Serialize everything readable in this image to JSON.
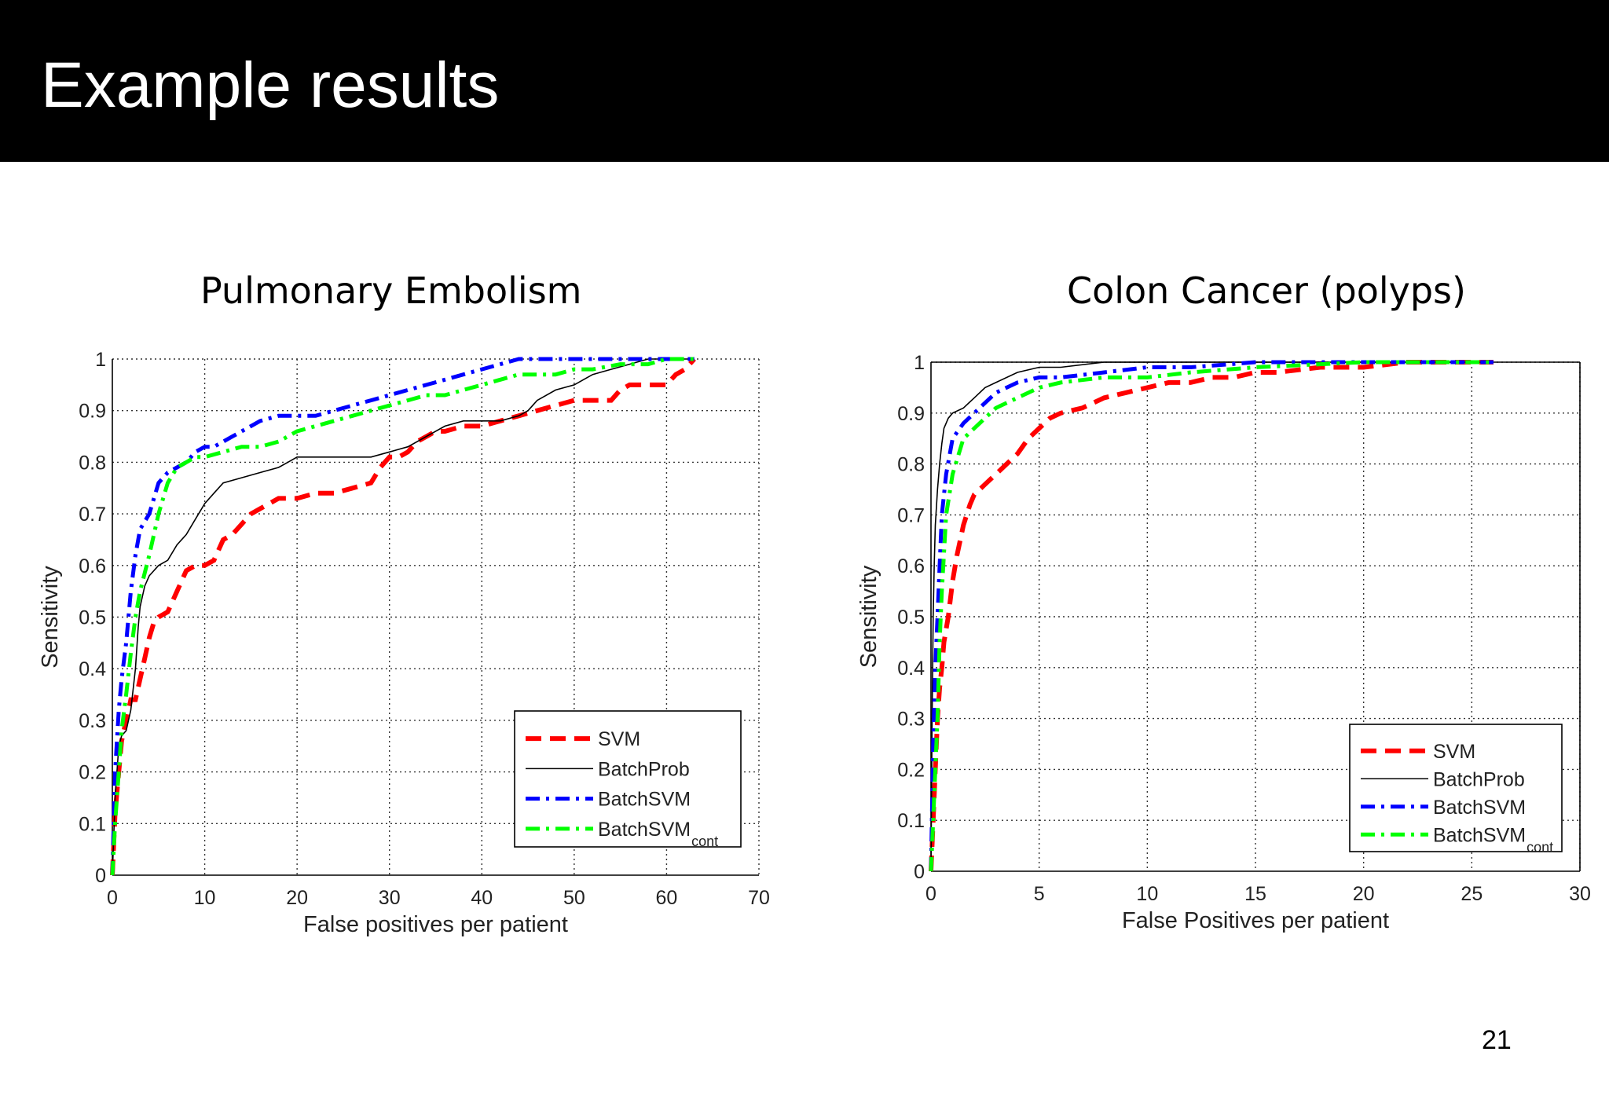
{
  "slide": {
    "title": "Example results",
    "page_number": "21"
  },
  "colors": {
    "svm": "#ff0000",
    "batchprob": "#000000",
    "batchsvm": "#0000ff",
    "batchsvm_cont": "#00ff00"
  },
  "chart_data": [
    {
      "type": "line",
      "title": "Pulmonary Embolism",
      "xlabel": "False positives per patient",
      "ylabel": "Sensitivity",
      "xlim": [
        0,
        70
      ],
      "ylim": [
        0,
        1
      ],
      "xticks": [
        "0",
        "10",
        "20",
        "30",
        "40",
        "50",
        "60",
        "70"
      ],
      "yticks": [
        "0",
        "0.1",
        "0.2",
        "0.3",
        "0.4",
        "0.5",
        "0.6",
        "0.7",
        "0.8",
        "0.9",
        "1"
      ],
      "grid": true,
      "box": false,
      "legend_position": "bottom-right",
      "series": [
        {
          "name": "SVM",
          "subscript": "",
          "style": "dashed",
          "x": [
            0,
            0.3,
            0.7,
            1,
            1.5,
            2,
            2.5,
            3,
            3.5,
            4,
            4.5,
            5,
            6,
            7,
            8,
            9,
            10,
            11,
            12,
            13,
            14,
            15,
            16,
            18,
            20,
            22,
            24,
            26,
            28,
            29,
            30,
            31,
            32,
            33,
            34,
            35,
            36,
            38,
            40,
            42,
            44,
            46,
            48,
            50,
            52,
            54,
            55,
            56,
            58,
            60,
            61,
            62,
            63
          ],
          "y": [
            0,
            0.12,
            0.2,
            0.26,
            0.3,
            0.34,
            0.34,
            0.38,
            0.42,
            0.46,
            0.49,
            0.5,
            0.51,
            0.55,
            0.59,
            0.6,
            0.6,
            0.61,
            0.65,
            0.66,
            0.68,
            0.7,
            0.71,
            0.73,
            0.73,
            0.74,
            0.74,
            0.75,
            0.76,
            0.79,
            0.81,
            0.81,
            0.82,
            0.84,
            0.85,
            0.86,
            0.86,
            0.87,
            0.87,
            0.88,
            0.89,
            0.9,
            0.91,
            0.92,
            0.92,
            0.92,
            0.94,
            0.95,
            0.95,
            0.95,
            0.97,
            0.98,
            1
          ]
        },
        {
          "name": "BatchProb",
          "subscript": "",
          "style": "solid",
          "x": [
            0,
            0.3,
            0.7,
            1,
            1.5,
            2,
            2.5,
            2.8,
            3,
            3.5,
            4,
            5,
            6,
            7,
            8,
            9,
            10,
            11,
            12,
            14,
            16,
            18,
            19,
            20,
            22,
            25,
            28,
            30,
            32,
            34,
            36,
            38,
            40,
            42,
            44,
            45,
            46,
            48,
            50,
            51,
            52,
            54,
            56,
            58,
            60,
            62,
            63
          ],
          "y": [
            0,
            0.15,
            0.25,
            0.27,
            0.28,
            0.32,
            0.4,
            0.48,
            0.52,
            0.56,
            0.58,
            0.6,
            0.61,
            0.64,
            0.66,
            0.69,
            0.72,
            0.74,
            0.76,
            0.77,
            0.78,
            0.79,
            0.8,
            0.81,
            0.81,
            0.81,
            0.81,
            0.82,
            0.83,
            0.85,
            0.87,
            0.88,
            0.88,
            0.88,
            0.89,
            0.9,
            0.92,
            0.94,
            0.95,
            0.96,
            0.97,
            0.98,
            0.99,
            1,
            1,
            1,
            1
          ]
        },
        {
          "name": "BatchSVM",
          "subscript": "",
          "style": "dashdot",
          "x": [
            0,
            0.3,
            0.7,
            1,
            1.5,
            2,
            2.5,
            3,
            4,
            5,
            6,
            7,
            8,
            9,
            10,
            11,
            12,
            13,
            14,
            15,
            16,
            18,
            20,
            22,
            24,
            26,
            28,
            30,
            32,
            34,
            36,
            38,
            40,
            42,
            44,
            46,
            48,
            50,
            55,
            60,
            63
          ],
          "y": [
            0,
            0.2,
            0.32,
            0.38,
            0.45,
            0.55,
            0.62,
            0.67,
            0.7,
            0.76,
            0.78,
            0.79,
            0.8,
            0.82,
            0.83,
            0.83,
            0.84,
            0.85,
            0.86,
            0.87,
            0.88,
            0.89,
            0.89,
            0.89,
            0.9,
            0.91,
            0.92,
            0.93,
            0.94,
            0.95,
            0.96,
            0.97,
            0.98,
            0.99,
            1,
            1,
            1,
            1,
            1,
            1,
            1
          ]
        },
        {
          "name": "BatchSVM",
          "subscript": "cont",
          "style": "dashdot",
          "x": [
            0,
            0.3,
            0.7,
            1,
            1.5,
            2,
            2.5,
            3,
            4,
            5,
            6,
            7,
            8,
            9,
            10,
            12,
            14,
            16,
            18,
            20,
            22,
            24,
            26,
            28,
            30,
            32,
            34,
            36,
            38,
            40,
            42,
            44,
            46,
            48,
            50,
            52,
            55,
            58,
            60,
            63
          ],
          "y": [
            0,
            0.1,
            0.2,
            0.28,
            0.35,
            0.43,
            0.5,
            0.55,
            0.62,
            0.7,
            0.76,
            0.79,
            0.8,
            0.81,
            0.81,
            0.82,
            0.83,
            0.83,
            0.84,
            0.86,
            0.87,
            0.88,
            0.89,
            0.9,
            0.91,
            0.92,
            0.93,
            0.93,
            0.94,
            0.95,
            0.96,
            0.97,
            0.97,
            0.97,
            0.98,
            0.98,
            0.99,
            0.99,
            1,
            1
          ]
        }
      ]
    },
    {
      "type": "line",
      "title": "Colon Cancer (polyps)",
      "xlabel": "False Positives per patient",
      "ylabel": "Sensitivity",
      "xlim": [
        0,
        30
      ],
      "ylim": [
        0,
        1
      ],
      "xticks": [
        "0",
        "5",
        "10",
        "15",
        "20",
        "25",
        "30"
      ],
      "yticks": [
        "0",
        "0.1",
        "0.2",
        "0.3",
        "0.4",
        "0.5",
        "0.6",
        "0.7",
        "0.8",
        "0.9",
        "1"
      ],
      "grid": true,
      "box": true,
      "legend_position": "bottom-right",
      "series": [
        {
          "name": "SVM",
          "subscript": "",
          "style": "dashed",
          "x": [
            0,
            0.1,
            0.2,
            0.3,
            0.4,
            0.5,
            0.6,
            0.8,
            1,
            1.2,
            1.5,
            1.8,
            2,
            2.5,
            3,
            3.5,
            4,
            4.5,
            5,
            5.5,
            6,
            7,
            8,
            9,
            10,
            11,
            12,
            13,
            14,
            15,
            16,
            18,
            20,
            22,
            24,
            26
          ],
          "y": [
            0,
            0.1,
            0.2,
            0.3,
            0.36,
            0.4,
            0.45,
            0.5,
            0.57,
            0.62,
            0.68,
            0.72,
            0.74,
            0.76,
            0.78,
            0.8,
            0.82,
            0.85,
            0.87,
            0.89,
            0.9,
            0.91,
            0.93,
            0.94,
            0.95,
            0.96,
            0.96,
            0.97,
            0.97,
            0.98,
            0.98,
            0.99,
            0.99,
            1,
            1,
            1
          ]
        },
        {
          "name": "BatchProb",
          "subscript": "",
          "style": "solid",
          "x": [
            0,
            0.05,
            0.1,
            0.15,
            0.2,
            0.3,
            0.4,
            0.5,
            0.6,
            0.8,
            1,
            1.5,
            2,
            2.5,
            3,
            4,
            5,
            6,
            8,
            10,
            12,
            15,
            20,
            26
          ],
          "y": [
            0,
            0.3,
            0.5,
            0.6,
            0.68,
            0.75,
            0.8,
            0.84,
            0.87,
            0.89,
            0.9,
            0.91,
            0.93,
            0.95,
            0.96,
            0.98,
            0.99,
            0.99,
            1,
            1,
            1,
            1,
            1,
            1
          ]
        },
        {
          "name": "BatchSVM",
          "subscript": "",
          "style": "dashdot",
          "x": [
            0,
            0.1,
            0.2,
            0.3,
            0.4,
            0.5,
            0.7,
            1,
            1.5,
            2,
            2.5,
            3,
            4,
            5,
            6,
            8,
            10,
            12,
            15,
            20,
            26
          ],
          "y": [
            0,
            0.25,
            0.4,
            0.5,
            0.6,
            0.7,
            0.78,
            0.85,
            0.88,
            0.9,
            0.92,
            0.94,
            0.96,
            0.97,
            0.97,
            0.98,
            0.99,
            0.99,
            1,
            1,
            1
          ]
        },
        {
          "name": "BatchSVM",
          "subscript": "cont",
          "style": "dashdot",
          "x": [
            0,
            0.1,
            0.2,
            0.3,
            0.4,
            0.5,
            0.7,
            1,
            1.5,
            2,
            2.5,
            3,
            4,
            5,
            6,
            8,
            10,
            12,
            15,
            20,
            26
          ],
          "y": [
            0,
            0.1,
            0.2,
            0.3,
            0.45,
            0.55,
            0.7,
            0.78,
            0.85,
            0.87,
            0.89,
            0.91,
            0.93,
            0.95,
            0.96,
            0.97,
            0.97,
            0.98,
            0.99,
            1,
            1
          ]
        }
      ]
    }
  ]
}
